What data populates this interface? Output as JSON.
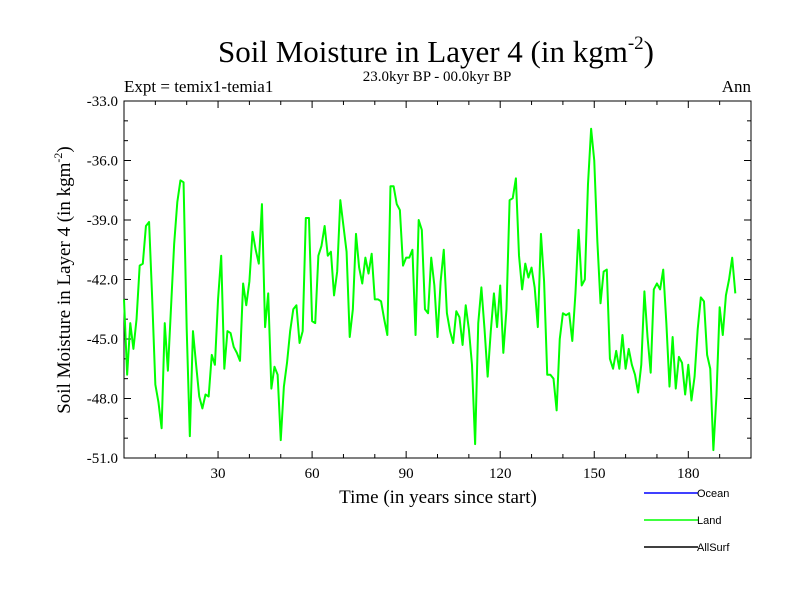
{
  "chart_data": {
    "type": "line",
    "title_main": "Soil Moisture in Layer 4 (in kgm",
    "title_sup": "-2",
    "title_close": ")",
    "subtitle": "23.0kyr BP - 00.0kyr BP",
    "expt_label": "Expt = temix1-temia1",
    "season_label": "Ann",
    "xlabel": "Time (in years since start)",
    "ylabel_main": "Soil Moisture in Layer 4 (in kgm",
    "ylabel_sup": "-2",
    "ylabel_close": ")",
    "xlim": [
      0,
      200
    ],
    "ylim": [
      -51,
      -33
    ],
    "x_ticks": [
      30,
      60,
      90,
      120,
      150,
      180
    ],
    "x_tick_labels": [
      "30",
      "60",
      "90",
      "120",
      "150",
      "180"
    ],
    "y_ticks": [
      -33,
      -36,
      -39,
      -42,
      -45,
      -48,
      -51
    ],
    "y_tick_labels": [
      "-33.0",
      "-36.0",
      "-39.0",
      "-42.0",
      "-45.0",
      "-48.0",
      "-51.0"
    ],
    "legend_position": "bottom-right",
    "series": [
      {
        "name": "Ocean",
        "color": "#0000ff",
        "values": []
      },
      {
        "name": "Land",
        "color": "#00ff00",
        "x_start": 0,
        "x_step": 1,
        "values": [
          -43.0,
          -46.8,
          -44.2,
          -45.5,
          -44.0,
          -41.3,
          -41.2,
          -39.3,
          -39.1,
          -43.0,
          -47.3,
          -48.2,
          -49.5,
          -44.2,
          -46.6,
          -43.4,
          -40.2,
          -38.1,
          -37.0,
          -37.1,
          -44.5,
          -49.9,
          -44.6,
          -46.3,
          -47.9,
          -48.5,
          -47.8,
          -47.9,
          -45.8,
          -46.3,
          -43.0,
          -40.8,
          -46.5,
          -44.6,
          -44.7,
          -45.4,
          -45.7,
          -46.1,
          -42.2,
          -43.3,
          -42.1,
          -39.6,
          -40.5,
          -41.2,
          -38.2,
          -44.4,
          -42.7,
          -47.5,
          -46.4,
          -46.8,
          -50.1,
          -47.4,
          -46.2,
          -44.6,
          -43.5,
          -43.3,
          -45.2,
          -44.6,
          -38.9,
          -38.9,
          -44.1,
          -44.2,
          -40.8,
          -40.3,
          -39.3,
          -40.8,
          -40.6,
          -42.8,
          -41.6,
          -38.0,
          -39.3,
          -40.6,
          -44.9,
          -43.5,
          -39.7,
          -41.4,
          -42.2,
          -40.9,
          -41.7,
          -40.7,
          -43.0,
          -43.0,
          -43.1,
          -44.0,
          -44.8,
          -37.3,
          -37.3,
          -38.2,
          -38.5,
          -41.3,
          -40.9,
          -40.9,
          -40.5,
          -44.8,
          -39.0,
          -39.5,
          -43.5,
          -43.7,
          -40.9,
          -42.3,
          -44.9,
          -42.1,
          -40.5,
          -43.7,
          -44.6,
          -45.2,
          -43.6,
          -43.9,
          -45.3,
          -43.3,
          -44.5,
          -46.3,
          -50.3,
          -44.2,
          -42.4,
          -44.5,
          -46.9,
          -44.6,
          -42.7,
          -44.4,
          -42.3,
          -45.7,
          -43.5,
          -38.0,
          -37.9,
          -36.9,
          -40.8,
          -42.5,
          -41.2,
          -41.9,
          -41.4,
          -42.4,
          -44.4,
          -39.7,
          -42.1,
          -46.8,
          -46.8,
          -47.0,
          -48.6,
          -45.0,
          -43.7,
          -43.8,
          -43.7,
          -45.1,
          -42.7,
          -39.5,
          -42.3,
          -42.0,
          -37.2,
          -34.4,
          -36.0,
          -40.1,
          -43.2,
          -41.6,
          -41.5,
          -46.0,
          -46.5,
          -45.6,
          -46.5,
          -44.8,
          -46.5,
          -45.5,
          -46.3,
          -46.8,
          -47.7,
          -46.3,
          -42.6,
          -44.9,
          -46.7,
          -42.5,
          -42.2,
          -42.5,
          -41.5,
          -44.2,
          -47.4,
          -44.9,
          -47.5,
          -45.9,
          -46.2,
          -47.8,
          -46.3,
          -48.1,
          -46.9,
          -44.5,
          -42.9,
          -43.1,
          -45.8,
          -46.5,
          -50.6,
          -47.8,
          -43.4,
          -44.8,
          -42.8,
          -42.0,
          -40.9,
          -42.7
        ]
      },
      {
        "name": "AllSurf",
        "color": "#000000",
        "values": []
      }
    ]
  }
}
